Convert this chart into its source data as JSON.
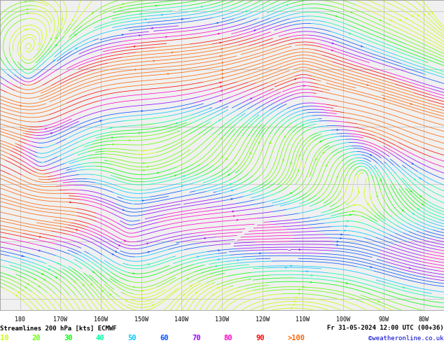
{
  "title_left": "Streamlines 200 hPa [kts] ECMWF",
  "title_right": "Fr 31-05-2024 12:00 UTC (00+36)",
  "watermark": "©weatheronline.co.uk",
  "legend_values": [
    "10",
    "20",
    "30",
    "40",
    "50",
    "60",
    "70",
    "80",
    "90",
    ">100"
  ],
  "legend_colors": [
    "#c8ff00",
    "#64ff00",
    "#00ff00",
    "#00ffa0",
    "#00c8ff",
    "#0050ff",
    "#9600ff",
    "#ff00c8",
    "#ff0000",
    "#ff6400"
  ],
  "background_color": "#f0f0f0",
  "grid_color": "#aaaaaa",
  "lon_ticks": [
    -180,
    -170,
    -160,
    -150,
    -140,
    -130,
    -120,
    -110,
    -100,
    -90,
    -80
  ],
  "lon_labels": [
    "180",
    "170W",
    "160W",
    "150W",
    "140W",
    "130W",
    "120W",
    "110W",
    "100W",
    "90W",
    "80W"
  ],
  "figsize": [
    6.34,
    4.9
  ],
  "dpi": 100,
  "seed": 42
}
